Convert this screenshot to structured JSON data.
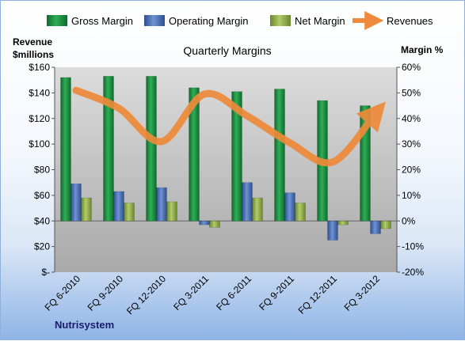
{
  "chart_data": {
    "type": "bar",
    "title": "Quarterly Margins",
    "company": "Nutrisystem",
    "categories": [
      "FQ 6-2010",
      "FQ 9-2010",
      "FQ 12-2010",
      "FQ 3-2011",
      "FQ 6-2011",
      "FQ 9-2011",
      "FQ 12-2011",
      "FQ 3-2012"
    ],
    "y_left_label_line1": "Revenue",
    "y_left_label_line2": "$millions",
    "y_right_label": "Margin %",
    "y_left_range": [
      0,
      160
    ],
    "y_left_ticks": [
      "$-",
      "$20",
      "$40",
      "$60",
      "$80",
      "$100",
      "$120",
      "$140",
      "$160"
    ],
    "y_right_range": [
      -20,
      60
    ],
    "y_right_ticks": [
      "-20%",
      "-10%",
      "0%",
      "10%",
      "20%",
      "30%",
      "40%",
      "50%",
      "60%"
    ],
    "grid": false,
    "legend_placement": "top",
    "series": [
      {
        "name": "Gross Margin",
        "kind": "bar",
        "axis": "right",
        "color": "#1f8a42",
        "values": [
          56,
          56.5,
          56.5,
          52,
          50.5,
          51.5,
          47,
          45
        ]
      },
      {
        "name": "Operating Margin",
        "kind": "bar",
        "axis": "right",
        "color": "#4a6fb3",
        "values": [
          14.5,
          11.5,
          13,
          -1.5,
          15,
          11,
          -7.5,
          -5
        ]
      },
      {
        "name": "Net Margin",
        "kind": "bar",
        "axis": "right",
        "color": "#8aa83e",
        "values": [
          9,
          7,
          7.5,
          -2.5,
          9,
          7,
          -1.5,
          -3
        ]
      },
      {
        "name": "Revenues",
        "kind": "line",
        "axis": "left",
        "color": "#ee8a3a",
        "values": [
          142,
          128,
          102,
          139,
          122,
          101,
          86,
          124
        ]
      }
    ]
  }
}
